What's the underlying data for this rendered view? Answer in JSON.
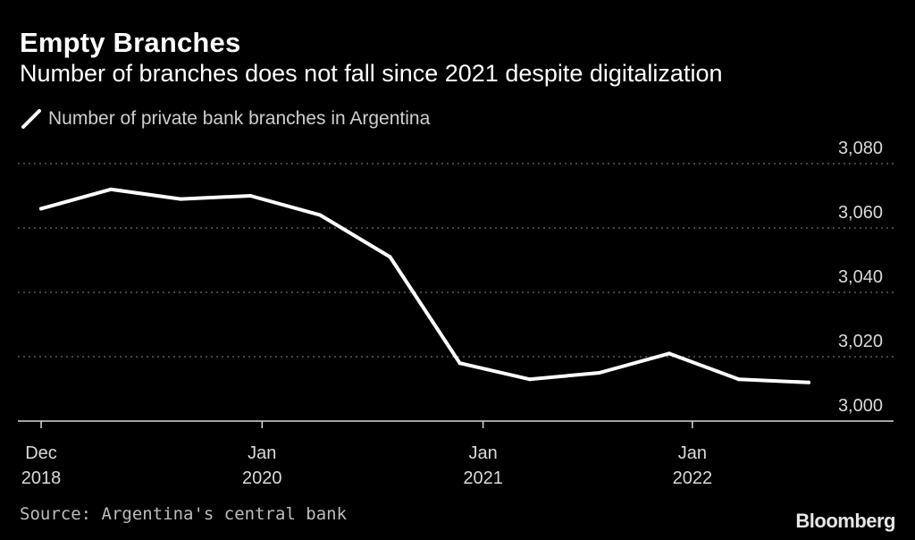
{
  "chart_data": {
    "type": "line",
    "title": "Empty Branches",
    "subtitle": "Number of branches does not fall since 2021 despite digitalization",
    "series": [
      {
        "name": "Number of private bank branches in Argentina",
        "x": [
          0,
          3,
          6,
          9,
          12,
          15,
          18,
          21,
          24,
          27,
          30,
          33
        ],
        "values": [
          3066,
          3072,
          3069,
          3070,
          3064,
          3051,
          3018,
          3013,
          3015,
          3021,
          3013,
          3012
        ]
      }
    ],
    "x_ticks": [
      {
        "x": 0,
        "label": [
          "Dec",
          "2018"
        ]
      },
      {
        "x": 9.5,
        "label": [
          "Jan",
          "2020"
        ]
      },
      {
        "x": 19,
        "label": [
          "Jan",
          "2021"
        ]
      },
      {
        "x": 28,
        "label": [
          "Jan",
          "2022"
        ]
      }
    ],
    "y_ticks": [
      {
        "value": 3000,
        "label": "3,000"
      },
      {
        "value": 3020,
        "label": "3,020"
      },
      {
        "value": 3040,
        "label": "3,040"
      },
      {
        "value": 3060,
        "label": "3,060"
      },
      {
        "value": 3080,
        "label": "3,080"
      }
    ],
    "xlim": [
      -1,
      33
    ],
    "ylim": [
      3000,
      3080
    ],
    "ylabel_position": "right",
    "grid": true,
    "xlabel": "",
    "ylabel": ""
  },
  "source": "Source: Argentina's central bank",
  "brand": "Bloomberg",
  "colors": {
    "background": "#000000",
    "line": "#ffffff",
    "grid": "#6e6e6e",
    "axis": "#d9d9d9"
  }
}
